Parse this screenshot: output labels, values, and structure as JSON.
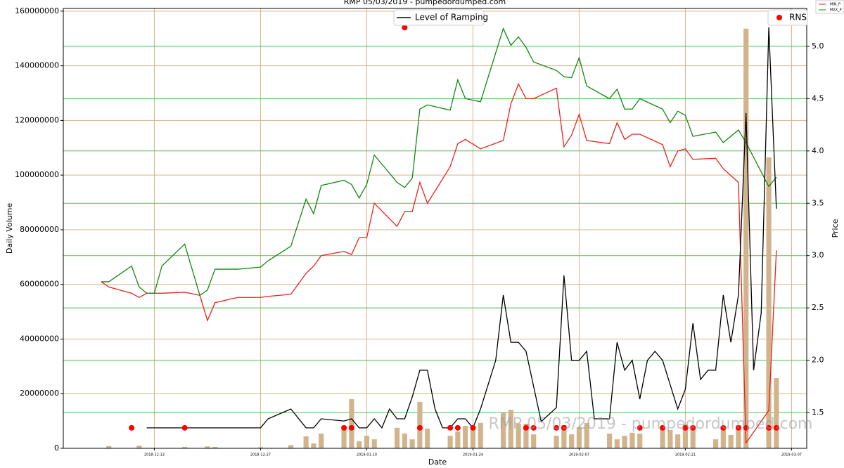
{
  "chart_data": {
    "type": "bar",
    "title": "RMP 05/03/2019 - pumpedordumped.com",
    "watermark": "RMP 05/03/2019 - pumpedordumped.com",
    "x_label": "Date",
    "y_label": "Daily Volume",
    "y2_label": "Price",
    "xlim": [
      "2018-12-01",
      "2019-03-09"
    ],
    "xticks": [
      "2018-12-13",
      "2018-12-27",
      "2019-01-10",
      "2019-01-24",
      "2019-02-07",
      "2019-02-21",
      "2019-03-07"
    ],
    "ylim": [
      0,
      161000000
    ],
    "yticks": [
      0,
      20000000,
      40000000,
      60000000,
      80000000,
      100000000,
      120000000,
      140000000,
      160000000
    ],
    "y2lim": [
      1.158,
      5.362
    ],
    "y2ticks": [
      {
        "value": 1.5,
        "label": "1.5"
      },
      {
        "value": 2,
        "label": "2.0"
      },
      {
        "value": 2.5,
        "label": "2.5"
      },
      {
        "value": 3,
        "label": "3.0"
      },
      {
        "value": 3.5,
        "label": "3.5"
      },
      {
        "value": 4,
        "label": "4.0"
      },
      {
        "value": 4.5,
        "label": "4.5"
      },
      {
        "value": 5,
        "label": "5.0"
      }
    ],
    "grid": true,
    "grid_color": "#d2b48c",
    "grid2_color": "#55bb55",
    "series": [
      {
        "kind": "bar",
        "color": "#d2b48c",
        "x": [
          "2018-12-07",
          "2018-12-11",
          "2018-12-17",
          "2018-12-20",
          "2018-12-21",
          "2018-12-27",
          "2018-12-31",
          "2019-01-02",
          "2019-01-03",
          "2019-01-04",
          "2019-01-07",
          "2019-01-08",
          "2019-01-09",
          "2019-01-10",
          "2019-01-11",
          "2019-01-14",
          "2019-01-15",
          "2019-01-16",
          "2019-01-17",
          "2019-01-18",
          "2019-01-21",
          "2019-01-22",
          "2019-01-23",
          "2019-01-24",
          "2019-01-25",
          "2019-01-28",
          "2019-01-29",
          "2019-01-30",
          "2019-01-31",
          "2019-02-01",
          "2019-02-04",
          "2019-02-05",
          "2019-02-06",
          "2019-02-07",
          "2019-02-08",
          "2019-02-11",
          "2019-02-12",
          "2019-02-13",
          "2019-02-14",
          "2019-02-15",
          "2019-02-18",
          "2019-02-19",
          "2019-02-20",
          "2019-02-21",
          "2019-02-22",
          "2019-02-25",
          "2019-02-26",
          "2019-02-27",
          "2019-02-28",
          "2019-03-01",
          "2019-03-04",
          "2019-03-05"
        ],
        "values": [
          800000,
          1000000,
          500000,
          700000,
          500000,
          400000,
          1200000,
          4400000,
          1800000,
          5400000,
          7700000,
          18000000,
          2600000,
          4600000,
          3300000,
          7500000,
          5400000,
          3300000,
          17000000,
          7200000,
          4600000,
          6200000,
          8200000,
          8200000,
          9300000,
          12900000,
          14100000,
          9000000,
          9000000,
          5100000,
          4600000,
          8500000,
          5100000,
          7700000,
          9300000,
          5400000,
          3300000,
          4600000,
          5700000,
          5400000,
          7500000,
          6700000,
          5100000,
          8700000,
          8200000,
          3300000,
          7200000,
          4900000,
          8500000,
          153600000,
          106500000,
          25700000
        ]
      },
      {
        "kind": "line",
        "name": "MIN_P",
        "color": "#e8221d",
        "axis": "y2",
        "legend": "outside",
        "x": [
          "2018-12-06",
          "2018-12-07",
          "2018-12-10",
          "2018-12-11",
          "2018-12-12",
          "2018-12-13",
          "2018-12-14",
          "2018-12-17",
          "2018-12-19",
          "2018-12-20",
          "2018-12-21",
          "2018-12-24",
          "2018-12-27",
          "2018-12-28",
          "2018-12-31",
          "2019-01-02",
          "2019-01-03",
          "2019-01-04",
          "2019-01-07",
          "2019-01-08",
          "2019-01-09",
          "2019-01-10",
          "2019-01-11",
          "2019-01-14",
          "2019-01-15",
          "2019-01-16",
          "2019-01-17",
          "2019-01-18",
          "2019-01-21",
          "2019-01-22",
          "2019-01-23",
          "2019-01-25",
          "2019-01-28",
          "2019-01-29",
          "2019-01-30",
          "2019-01-31",
          "2019-02-01",
          "2019-02-04",
          "2019-02-05",
          "2019-02-06",
          "2019-02-07",
          "2019-02-08",
          "2019-02-11",
          "2019-02-12",
          "2019-02-13",
          "2019-02-14",
          "2019-02-15",
          "2019-02-18",
          "2019-02-19",
          "2019-02-20",
          "2019-02-21",
          "2019-02-22",
          "2019-02-25",
          "2019-02-26",
          "2019-02-28",
          "2019-03-01",
          "2019-03-04",
          "2019-03-05"
        ],
        "values": [
          2.75,
          2.7,
          2.64,
          2.6,
          2.64,
          2.64,
          2.64,
          2.65,
          2.62,
          2.38,
          2.55,
          2.6,
          2.6,
          2.61,
          2.63,
          2.83,
          2.9,
          3.0,
          3.04,
          3.01,
          3.17,
          3.17,
          3.5,
          3.28,
          3.42,
          3.42,
          3.7,
          3.5,
          3.85,
          4.07,
          4.11,
          4.02,
          4.1,
          4.45,
          4.64,
          4.5,
          4.5,
          4.6,
          4.04,
          4.15,
          4.35,
          4.1,
          4.07,
          4.27,
          4.11,
          4.16,
          4.16,
          4.06,
          3.85,
          4.0,
          4.02,
          3.92,
          3.93,
          3.83,
          3.7,
          1.21,
          1.52,
          3.05
        ]
      },
      {
        "kind": "line",
        "name": "MAX_P",
        "color": "#118811",
        "axis": "y2",
        "legend": "outside",
        "x": [
          "2018-12-06",
          "2018-12-07",
          "2018-12-10",
          "2018-12-11",
          "2018-12-12",
          "2018-12-13",
          "2018-12-14",
          "2018-12-17",
          "2018-12-19",
          "2018-12-20",
          "2018-12-21",
          "2018-12-24",
          "2018-12-27",
          "2018-12-28",
          "2018-12-31",
          "2019-01-02",
          "2019-01-03",
          "2019-01-04",
          "2019-01-07",
          "2019-01-08",
          "2019-01-09",
          "2019-01-10",
          "2019-01-11",
          "2019-01-14",
          "2019-01-15",
          "2019-01-16",
          "2019-01-17",
          "2019-01-18",
          "2019-01-21",
          "2019-01-22",
          "2019-01-23",
          "2019-01-25",
          "2019-01-28",
          "2019-01-29",
          "2019-01-30",
          "2019-01-31",
          "2019-02-01",
          "2019-02-04",
          "2019-02-05",
          "2019-02-06",
          "2019-02-07",
          "2019-02-08",
          "2019-02-11",
          "2019-02-12",
          "2019-02-13",
          "2019-02-14",
          "2019-02-15",
          "2019-02-18",
          "2019-02-19",
          "2019-02-20",
          "2019-02-21",
          "2019-02-22",
          "2019-02-25",
          "2019-02-26",
          "2019-02-28",
          "2019-03-01",
          "2019-03-04",
          "2019-03-05"
        ],
        "values": [
          2.75,
          2.75,
          2.9,
          2.7,
          2.64,
          2.64,
          2.9,
          3.11,
          2.62,
          2.67,
          2.87,
          2.87,
          2.89,
          2.95,
          3.09,
          3.54,
          3.4,
          3.67,
          3.72,
          3.68,
          3.55,
          3.68,
          3.96,
          3.7,
          3.65,
          3.74,
          4.4,
          4.44,
          4.39,
          4.68,
          4.5,
          4.47,
          5.17,
          5.01,
          5.09,
          4.99,
          4.85,
          4.77,
          4.71,
          4.7,
          4.89,
          4.62,
          4.5,
          4.59,
          4.4,
          4.4,
          4.5,
          4.4,
          4.27,
          4.38,
          4.34,
          4.14,
          4.18,
          4.08,
          4.2,
          4.08,
          3.66,
          3.75
        ]
      },
      {
        "kind": "line",
        "name": "Level of Ramping",
        "color": "#000000",
        "legend": "upper center",
        "x": [
          "2018-12-12",
          "2018-12-27",
          "2018-12-28",
          "2018-12-31",
          "2019-01-02",
          "2019-01-03",
          "2019-01-04",
          "2019-01-07",
          "2019-01-08",
          "2019-01-09",
          "2019-01-10",
          "2019-01-11",
          "2019-01-12",
          "2019-01-13",
          "2019-01-14",
          "2019-01-15",
          "2019-01-16",
          "2019-01-17",
          "2019-01-18",
          "2019-01-19",
          "2019-01-20",
          "2019-01-21",
          "2019-01-22",
          "2019-01-23",
          "2019-01-24",
          "2019-01-25",
          "2019-01-27",
          "2019-01-28",
          "2019-01-29",
          "2019-01-30",
          "2019-01-31",
          "2019-02-02",
          "2019-02-04",
          "2019-02-05",
          "2019-02-06",
          "2019-02-07",
          "2019-02-08",
          "2019-02-09",
          "2019-02-11",
          "2019-02-12",
          "2019-02-13",
          "2019-02-14",
          "2019-02-15",
          "2019-02-16",
          "2019-02-17",
          "2019-02-18",
          "2019-02-20",
          "2019-02-21",
          "2019-02-22",
          "2019-02-23",
          "2019-02-24",
          "2019-02-25",
          "2019-02-26",
          "2019-02-27",
          "2019-02-28",
          "2019-03-01",
          "2019-03-02",
          "2019-03-03",
          "2019-03-04",
          "2019-03-05"
        ],
        "values": [
          7500000,
          7500000,
          10800000,
          14400000,
          7500000,
          7500000,
          10800000,
          10000000,
          10800000,
          7500000,
          7500000,
          10800000,
          7500000,
          14400000,
          10800000,
          10800000,
          18800000,
          28600000,
          28600000,
          14400000,
          7500000,
          7500000,
          10800000,
          10800000,
          7500000,
          14400000,
          32200000,
          56100000,
          38800000,
          38800000,
          35500000,
          9800000,
          14900000,
          63300000,
          32200000,
          32200000,
          35500000,
          10800000,
          10800000,
          38800000,
          28600000,
          32200000,
          18000000,
          32200000,
          35500000,
          32200000,
          14400000,
          21600000,
          45800000,
          25200000,
          28600000,
          28600000,
          56100000,
          38800000,
          56100000,
          122700000,
          28600000,
          49600000,
          154100000,
          87700000
        ]
      },
      {
        "kind": "scatter",
        "name": "RNS",
        "color": "#ff0000",
        "legend": "upper right",
        "x": [
          "2018-12-10",
          "2018-12-17",
          "2019-01-07",
          "2019-01-08",
          "2019-01-15",
          "2019-01-17",
          "2019-01-21",
          "2019-01-22",
          "2019-01-24",
          "2019-01-31",
          "2019-02-01",
          "2019-02-04",
          "2019-02-05",
          "2019-02-15",
          "2019-02-18",
          "2019-02-21",
          "2019-02-22",
          "2019-02-26",
          "2019-02-28",
          "2019-03-01",
          "2019-03-04",
          "2019-03-05"
        ],
        "values": [
          7500000,
          7500000,
          7500000,
          7500000,
          154000000,
          7500000,
          7500000,
          7500000,
          7500000,
          7500000,
          7500000,
          7500000,
          7500000,
          7500000,
          7500000,
          7500000,
          7500000,
          7500000,
          7500000,
          7500000,
          7500000,
          7500000
        ]
      }
    ]
  }
}
